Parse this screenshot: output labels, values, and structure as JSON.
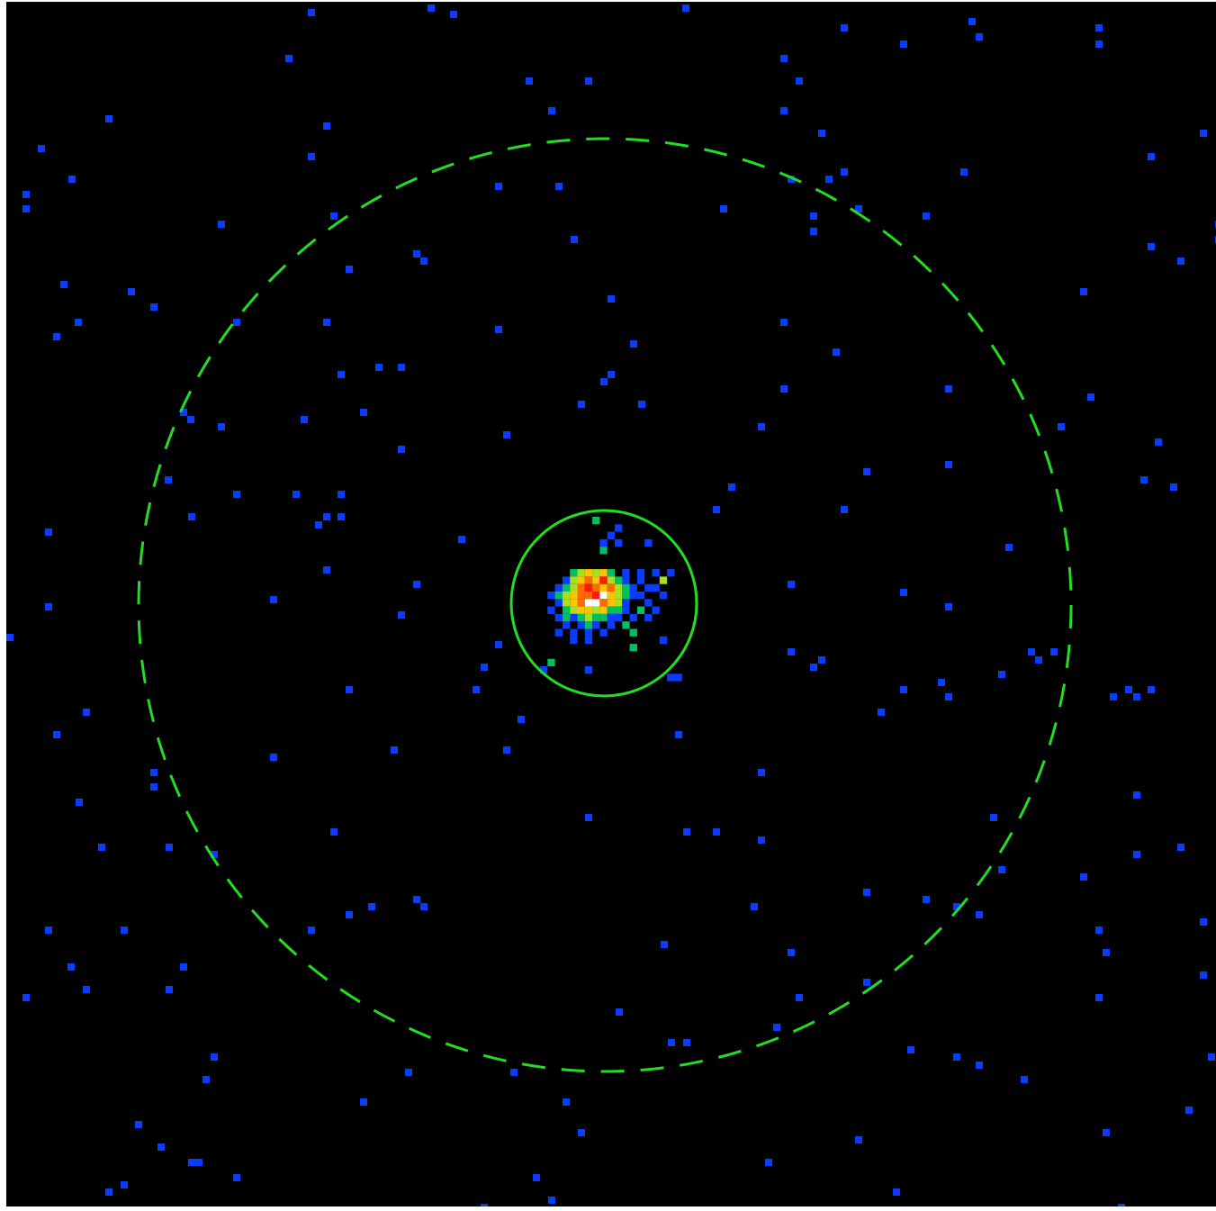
{
  "image": {
    "description_free": true,
    "colormap": {
      "background": "#000000",
      "low": "#0a3cff",
      "mid_low": "#00c060",
      "mid": "#a8e020",
      "mid_high": "#ffc400",
      "high": "#ff6a00",
      "peak_red": "#ff1a00",
      "peak_white": "#ffffff"
    },
    "region_color": "#22dd22",
    "regions": [
      {
        "kind": "source",
        "shape": "circle",
        "style": "solid"
      },
      {
        "kind": "background",
        "shape": "circle",
        "style": "dashed"
      }
    ]
  }
}
